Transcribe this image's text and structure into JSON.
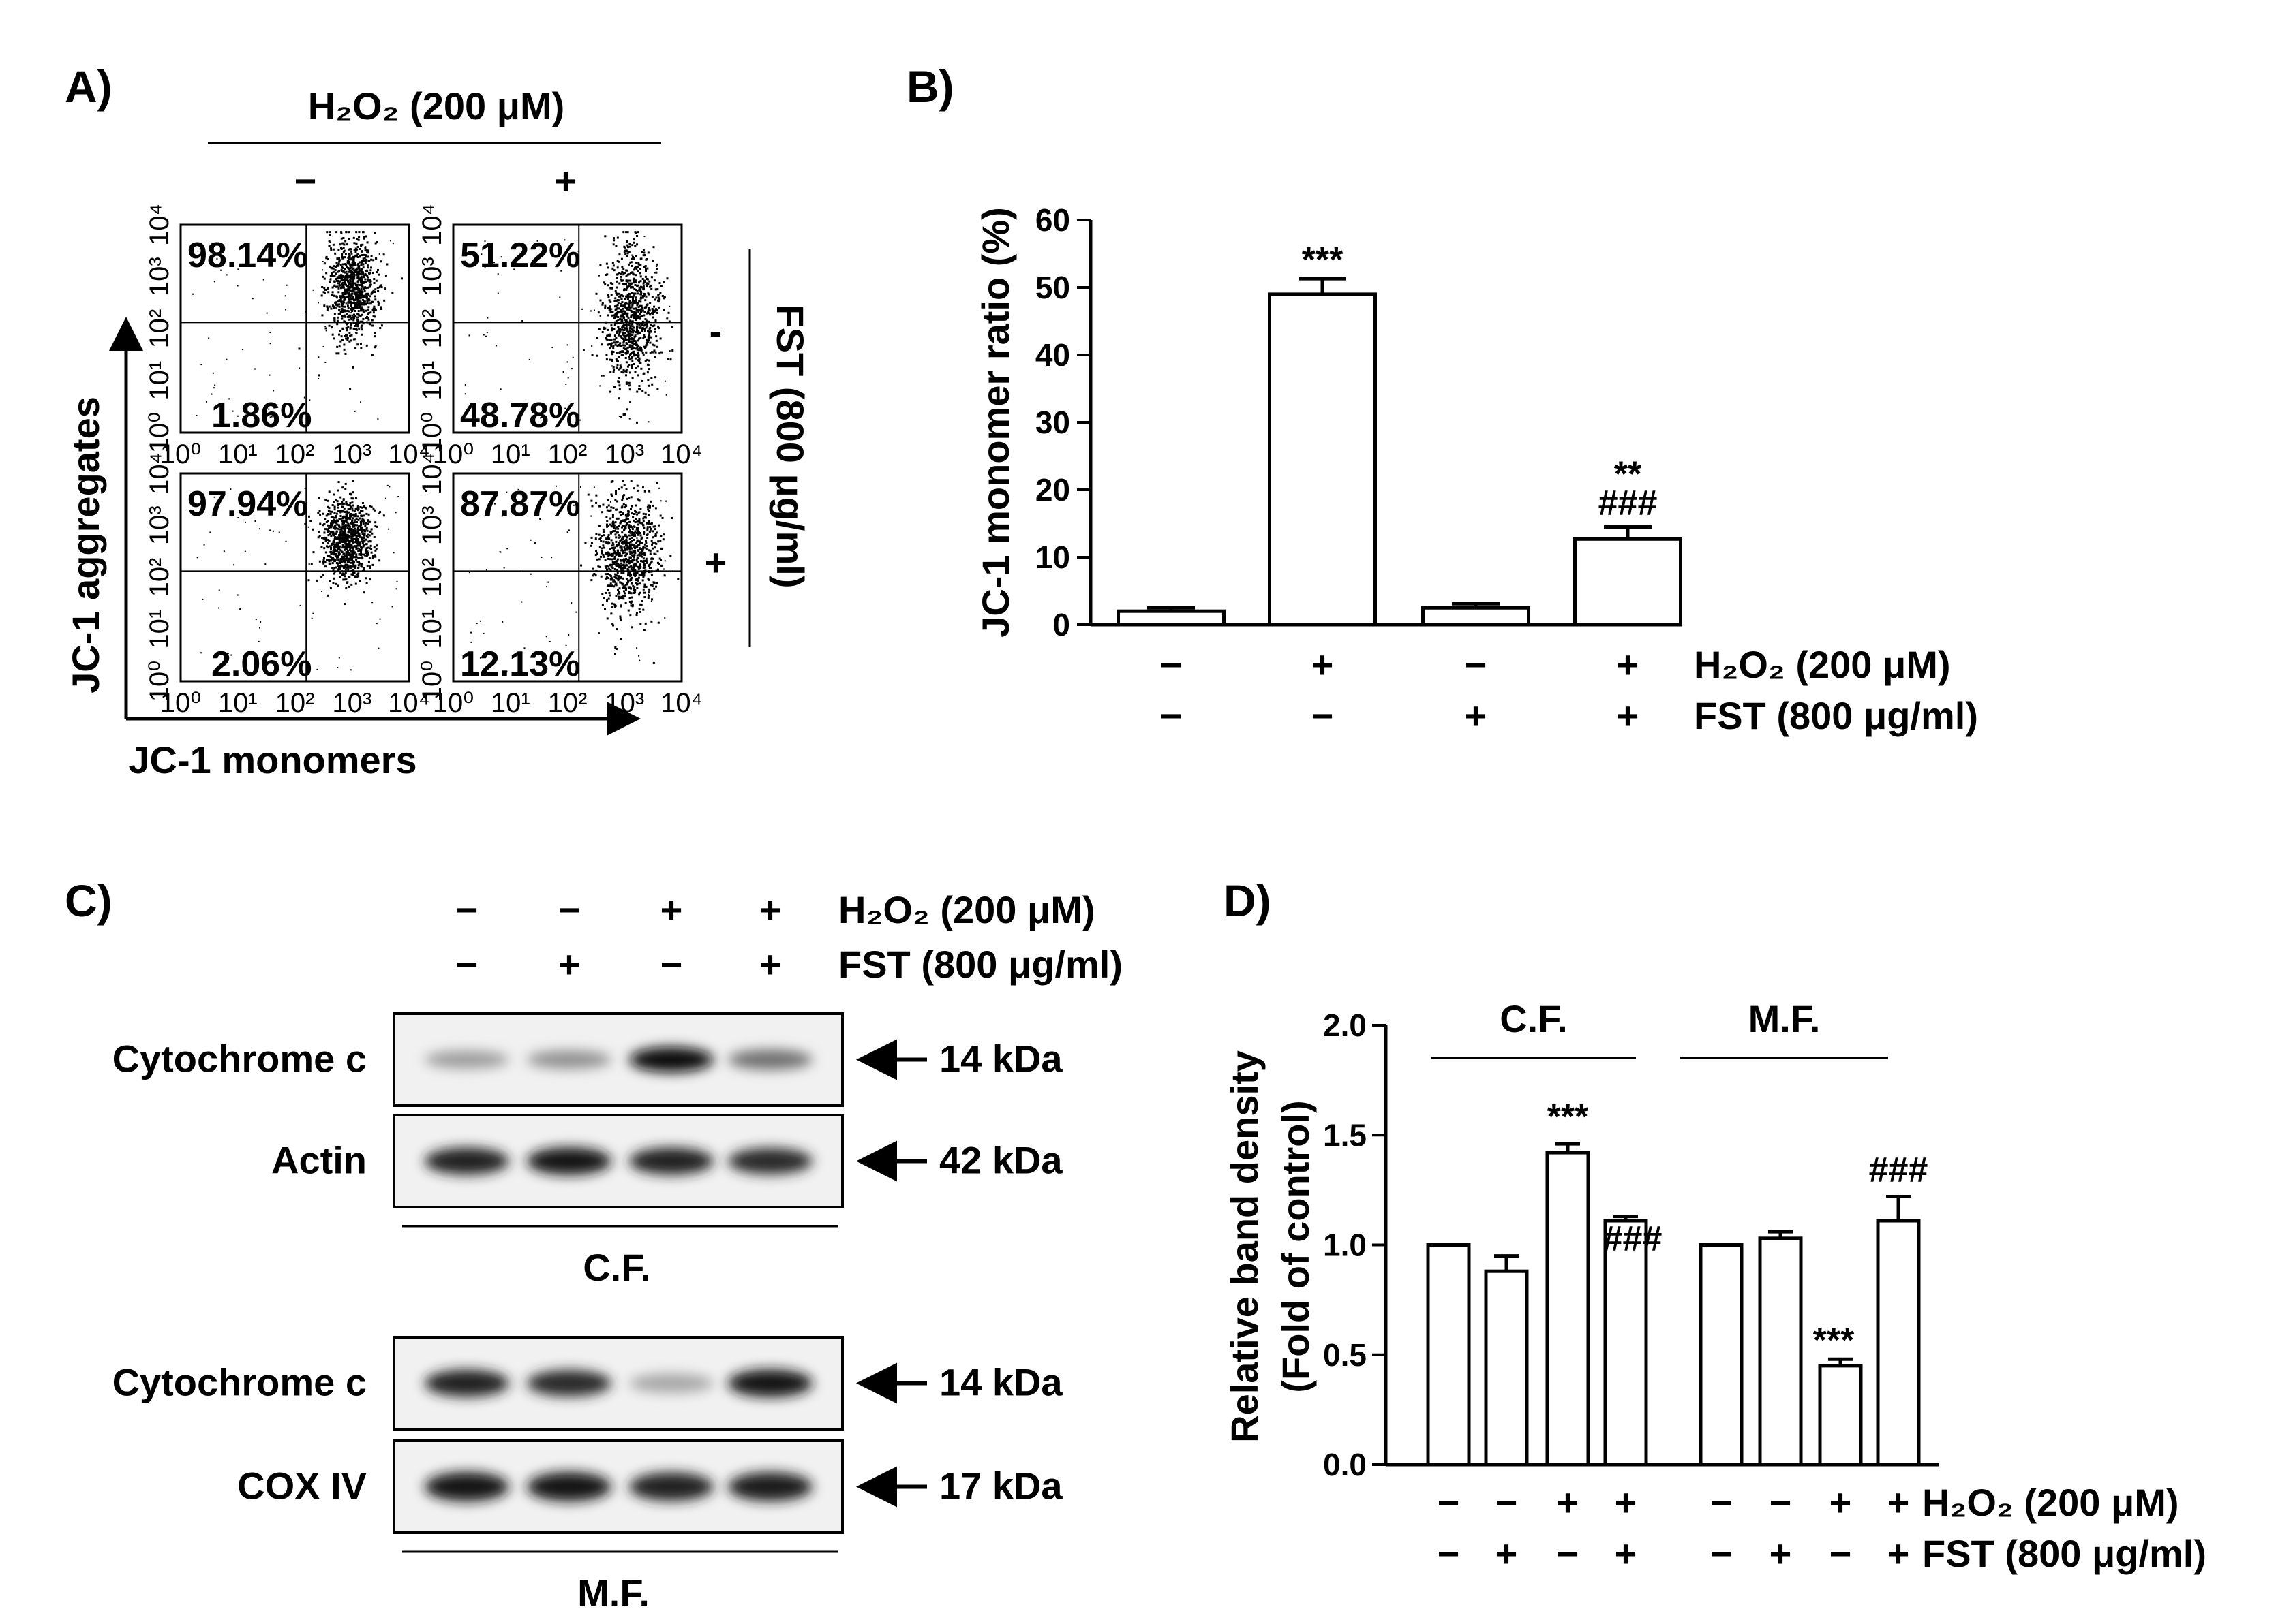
{
  "panels": {
    "a": {
      "label": "A)",
      "h2o2_header": "H₂O₂ (200 μM)",
      "col_signs": [
        "−",
        "+"
      ],
      "fst_header": "FST (800 μg/ml)",
      "row_signs": [
        "-",
        "+"
      ],
      "y_axis": "JC-1 aggregates",
      "x_axis": "JC-1 monomers",
      "tick_labels": [
        "10⁰",
        "10¹",
        "10²",
        "10³",
        "10⁴"
      ],
      "plots": [
        {
          "upper": "98.14%",
          "lower": "1.86%"
        },
        {
          "upper": "51.22%",
          "lower": "48.78%"
        },
        {
          "upper": "97.94%",
          "lower": "2.06%"
        },
        {
          "upper": "87.87%",
          "lower": "12.13%"
        }
      ]
    },
    "b": {
      "label": "B)"
    },
    "c": {
      "label": "C)",
      "h2o2_signs": [
        "−",
        "−",
        "+",
        "+"
      ],
      "fst_signs": [
        "−",
        "+",
        "−",
        "+"
      ],
      "h2o2_label": "H₂O₂ (200 μM)",
      "fst_label": "FST (800 μg/ml)",
      "blots": [
        {
          "name": "Cytochrome c",
          "kda": "14 kDa",
          "intensity": [
            0.35,
            0.4,
            1.0,
            0.55
          ]
        },
        {
          "name": "Actin",
          "kda": "42 kDa",
          "intensity": [
            0.9,
            0.95,
            0.9,
            0.85
          ]
        },
        {
          "name": "Cytochrome c",
          "kda": "14 kDa",
          "intensity": [
            0.9,
            0.85,
            0.3,
            0.95
          ]
        },
        {
          "name": "COX IV",
          "kda": "17 kDa",
          "intensity": [
            0.95,
            0.95,
            0.9,
            0.92
          ]
        }
      ],
      "fraction_cf": "C.F.",
      "fraction_mf": "M.F."
    },
    "d": {
      "label": "D)"
    }
  },
  "chart_data": [
    {
      "type": "bar",
      "panel": "B",
      "ylabel": "JC-1 monomer ratio (%)",
      "ylim": [
        0,
        60
      ],
      "yticks": [
        0,
        10,
        20,
        30,
        40,
        50,
        60
      ],
      "values": [
        2.0,
        49.0,
        2.5,
        12.7
      ],
      "errors": [
        0.5,
        2.3,
        0.6,
        1.8
      ],
      "annotations_top": [
        "",
        "***",
        "",
        "**"
      ],
      "annotations_bottom": [
        "",
        "",
        "",
        "###"
      ],
      "h2o2_signs": [
        "−",
        "+",
        "−",
        "+"
      ],
      "fst_signs": [
        "−",
        "−",
        "+",
        "+"
      ],
      "h2o2_label": "H₂O₂ (200 μM)",
      "fst_label": "FST (800 μg/ml)"
    },
    {
      "type": "bar",
      "panel": "D",
      "ylabel": "Relative band density",
      "ylabel2": "(Fold of control)",
      "ylim": [
        0,
        2.0
      ],
      "yticks": [
        "0.0",
        "0.5",
        "1.0",
        "1.5",
        "2.0"
      ],
      "groups": [
        {
          "name": "C.F.",
          "values": [
            1.0,
            0.88,
            1.42,
            1.11
          ],
          "errors": [
            0.0,
            0.07,
            0.04,
            0.02
          ],
          "annotations": [
            "",
            "",
            "***",
            "###"
          ]
        },
        {
          "name": "M.F.",
          "values": [
            1.0,
            1.03,
            0.45,
            1.11
          ],
          "errors": [
            0.0,
            0.03,
            0.03,
            0.11
          ],
          "annotations": [
            "",
            "",
            "***",
            "###"
          ]
        }
      ],
      "h2o2_signs": [
        "−",
        "−",
        "+",
        "+"
      ],
      "fst_signs": [
        "−",
        "+",
        "−",
        "+"
      ],
      "h2o2_label": "H₂O₂ (200 μM)",
      "fst_label": "FST (800 μg/ml)"
    }
  ]
}
